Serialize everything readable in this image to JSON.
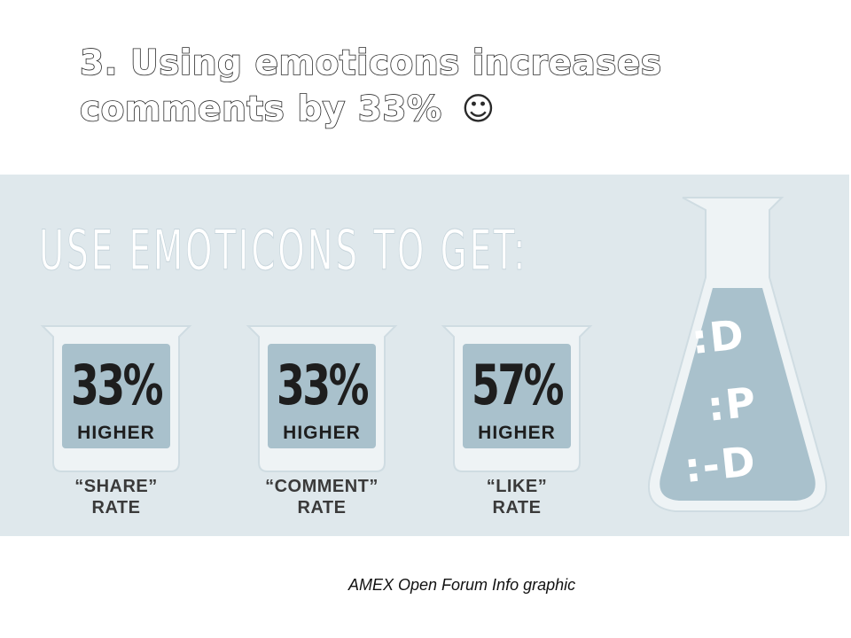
{
  "slide": {
    "title_line1": "3. Using emoticons increases",
    "title_line2": "comments by 33%",
    "title_smiley": "☺"
  },
  "infographic": {
    "headline": "USE EMOTICONS TO GET:",
    "stats": [
      {
        "value": "33%",
        "sub": "HIGHER",
        "label_line1": "“SHARE”",
        "label_line2": "RATE"
      },
      {
        "value": "33%",
        "sub": "HIGHER",
        "label_line1": "“COMMENT”",
        "label_line2": "RATE"
      },
      {
        "value": "57%",
        "sub": "HIGHER",
        "label_line1": "“LIKE”",
        "label_line2": "RATE"
      }
    ],
    "flask_emoticons": [
      ":D",
      ":P",
      ":-D"
    ],
    "colors": {
      "panel_background": "#dfe8ec",
      "liquid": "#a9c1cc",
      "glass": "#eef3f5",
      "text_dark": "#1e1e1e"
    }
  },
  "caption": "AMEX Open Forum Info graphic"
}
